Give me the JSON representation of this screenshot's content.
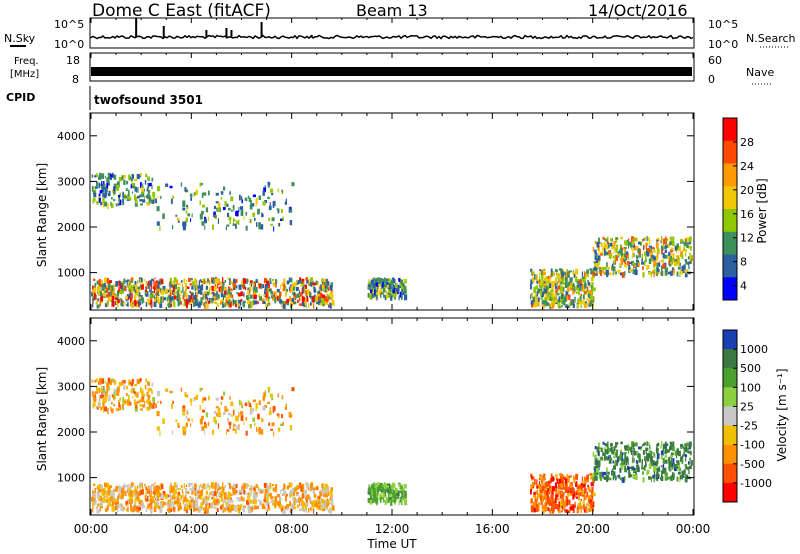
{
  "header": {
    "radar": "Dome C East (fitACF)",
    "beam": "Beam 13",
    "date": "14/Oct/2016"
  },
  "strips": {
    "nsky_label": "N.Sky",
    "nsky_ticks": [
      "10^5",
      "10^0"
    ],
    "nsearch_label": "N.Search",
    "freq_label_line1": "Freq.",
    "freq_label_line2": "[MHz]",
    "freq_ticks": [
      "18",
      "8"
    ],
    "nave_label": "Nave",
    "nave_ticks": [
      "60",
      "0"
    ],
    "cpid_label": "CPID",
    "cpid_value": "twofsound 3501"
  },
  "chart_data": [
    {
      "type": "heatmap",
      "ylabel": "Slant Range [km]",
      "yticks": [
        "4000",
        "3000",
        "2000",
        "1000"
      ],
      "ylim": [
        180,
        4500
      ],
      "colorbar_label": "Power [dB]",
      "colorbar_ticks": [
        "28",
        "24",
        "20",
        "16",
        "12",
        "8",
        "4"
      ],
      "colorbar_colors": [
        "#ff0000",
        "#ff4a00",
        "#ff9a00",
        "#f0c800",
        "#8fc800",
        "#3e8f5a",
        "#2c5fa0",
        "#0000ff"
      ],
      "features": [
        {
          "t0": 0.0,
          "t1": 9.6,
          "r0": 300,
          "r1": 900,
          "level": "strong"
        },
        {
          "t0": 0.0,
          "t1": 2.5,
          "r0": 2500,
          "r1": 3200,
          "level": "weak"
        },
        {
          "t0": 2.5,
          "t1": 8.0,
          "r0": 2000,
          "r1": 3000,
          "level": "weak"
        },
        {
          "t0": 11.0,
          "t1": 12.5,
          "r0": 500,
          "r1": 900,
          "level": "weak"
        },
        {
          "t0": 17.5,
          "t1": 20.0,
          "r0": 200,
          "r1": 1100,
          "level": "moderate"
        },
        {
          "t0": 20.0,
          "t1": 24.0,
          "r0": 1000,
          "r1": 1800,
          "level": "moderate"
        }
      ]
    },
    {
      "type": "heatmap",
      "ylabel": "Slant Range [km]",
      "yticks": [
        "4000",
        "3000",
        "2000",
        "1000"
      ],
      "ylim": [
        180,
        4500
      ],
      "colorbar_label": "Velocity [m s⁻¹]",
      "colorbar_ticks": [
        "1000",
        "500",
        "100",
        "25",
        "-25",
        "-100",
        "-500",
        "-1000"
      ],
      "colorbar_colors": [
        "#1a3fb0",
        "#3a7a40",
        "#4ca030",
        "#8cd040",
        "#c8c8c8",
        "#f0c000",
        "#ff9000",
        "#ff5000",
        "#ff0000"
      ],
      "xticks": [
        "00:00",
        "04:00",
        "08:00",
        "12:00",
        "16:00",
        "20:00",
        "00:00"
      ],
      "xlabel": "Time UT",
      "xlim": [
        0,
        24
      ]
    }
  ]
}
